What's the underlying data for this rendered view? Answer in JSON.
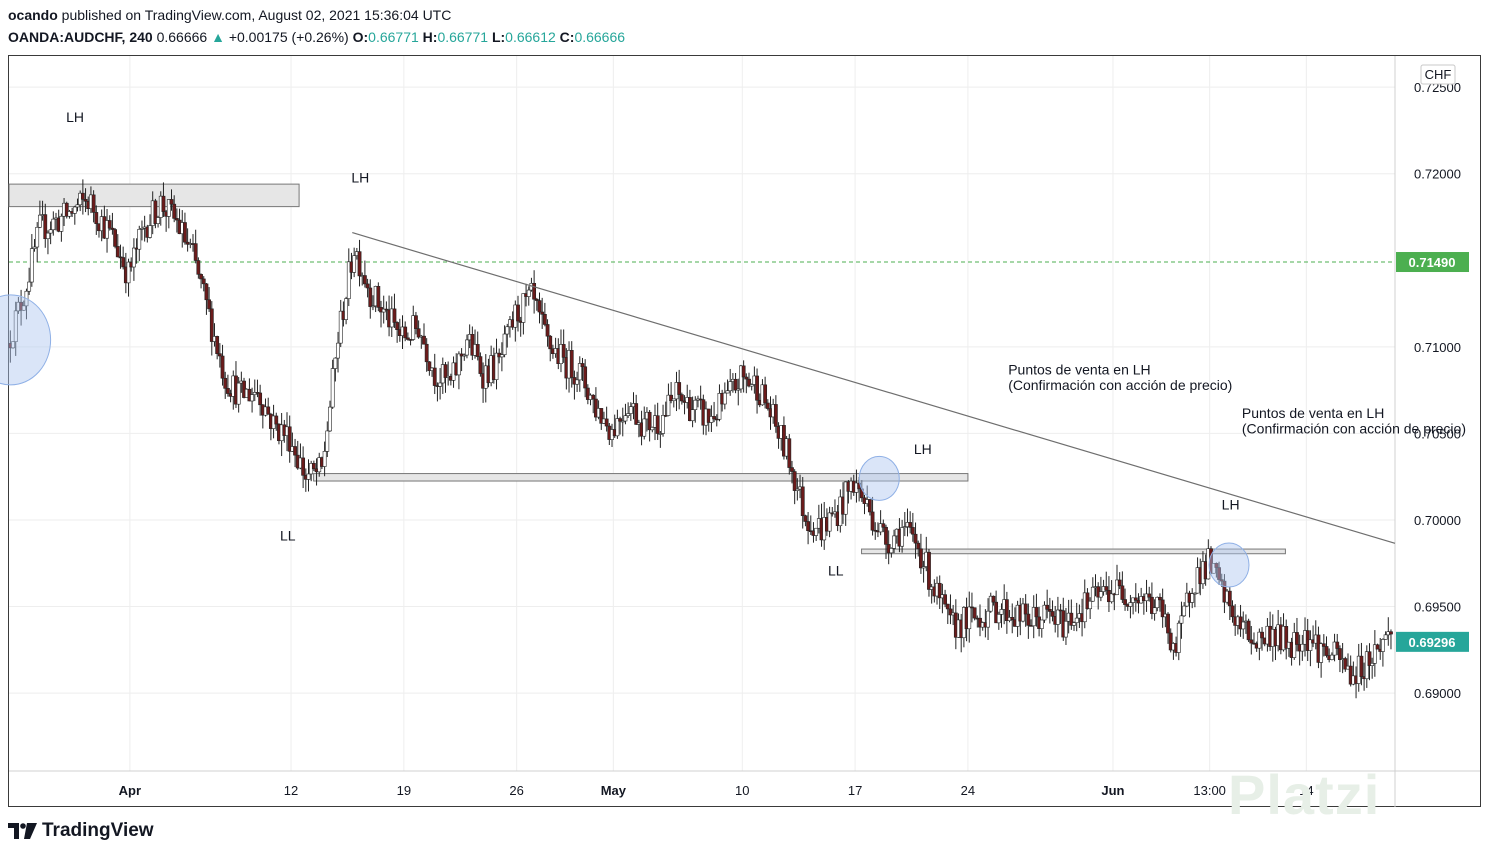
{
  "header": {
    "author": "ocando",
    "published_text": "published on TradingView.com, August 02, 2021 15:36:04 UTC",
    "symbol": "OANDA:AUDCHF, 240",
    "last": "0.66666",
    "change": "+0.00175 (+0.26%)",
    "o_label": "O:",
    "o_value": "0.66771",
    "h_label": "H:",
    "h_value": "0.66771",
    "l_label": "L:",
    "l_value": "0.66612",
    "c_label": "C:",
    "c_value": "0.66666"
  },
  "footer": {
    "brand": "TradingView",
    "watermark": "Platzi"
  },
  "colors": {
    "up": "#26a69a",
    "bull": "#ffffff",
    "bear": "#6b1b1b",
    "wick": "#222222",
    "trendline": "#6e6e6e",
    "zone_fill": "#e6e6e6",
    "circle": "#adc6f0",
    "dashed": "#4caf50",
    "last_price_bg": "#26a69a"
  },
  "chart_data": {
    "type": "candlestick",
    "currency": "CHF",
    "y_ticks": [
      "0.72500",
      "0.72000",
      "0.71000",
      "0.70500",
      "0.70000",
      "0.69500",
      "0.69000"
    ],
    "y_tick_values": [
      0.725,
      0.72,
      0.71,
      0.705,
      0.7,
      0.695,
      0.69
    ],
    "ylim": [
      0.6855,
      0.7268
    ],
    "x_ticks": [
      "Apr",
      "12",
      "19",
      "26",
      "May",
      "10",
      "17",
      "24",
      "Jun",
      "13:00",
      "14"
    ],
    "x_tick_days": [
      32,
      42,
      49,
      56,
      62,
      70,
      77,
      84,
      93,
      99,
      105
    ],
    "x_range_days": [
      24.5,
      110.5
    ],
    "grid": true,
    "horizontal_price_line": {
      "value": 0.7149,
      "label": "0.71490"
    },
    "last_price": {
      "value": 0.69296,
      "label": "0.69296"
    },
    "price_path": [
      [
        24.5,
        0.7102
      ],
      [
        25.5,
        0.713
      ],
      [
        26.5,
        0.7168
      ],
      [
        28,
        0.7175
      ],
      [
        29.5,
        0.7185
      ],
      [
        31,
        0.7163
      ],
      [
        32,
        0.7142
      ],
      [
        33,
        0.717
      ],
      [
        34,
        0.7183
      ],
      [
        35,
        0.7172
      ],
      [
        36,
        0.7152
      ],
      [
        37,
        0.7118
      ],
      [
        38,
        0.7082
      ],
      [
        39,
        0.7072
      ],
      [
        40,
        0.7075
      ],
      [
        41,
        0.7055
      ],
      [
        42,
        0.7048
      ],
      [
        43,
        0.7025
      ],
      [
        44,
        0.7028
      ],
      [
        45,
        0.7105
      ],
      [
        46,
        0.7158
      ],
      [
        47,
        0.7132
      ],
      [
        48,
        0.7118
      ],
      [
        49,
        0.7105
      ],
      [
        50,
        0.7112
      ],
      [
        51,
        0.7085
      ],
      [
        52,
        0.7078
      ],
      [
        53,
        0.7105
      ],
      [
        54,
        0.7085
      ],
      [
        55,
        0.709
      ],
      [
        56,
        0.7118
      ],
      [
        57,
        0.7128
      ],
      [
        58,
        0.7102
      ],
      [
        59,
        0.7092
      ],
      [
        60,
        0.7085
      ],
      [
        61,
        0.7065
      ],
      [
        62,
        0.7052
      ],
      [
        63,
        0.7068
      ],
      [
        64,
        0.7055
      ],
      [
        65,
        0.7058
      ],
      [
        66,
        0.7072
      ],
      [
        67,
        0.7065
      ],
      [
        68,
        0.7058
      ],
      [
        69,
        0.7068
      ],
      [
        70,
        0.7082
      ],
      [
        71,
        0.7078
      ],
      [
        72,
        0.7058
      ],
      [
        73,
        0.7035
      ],
      [
        74,
        0.7002
      ],
      [
        75,
        0.6995
      ],
      [
        76,
        0.7005
      ],
      [
        77,
        0.7022
      ],
      [
        78,
        0.7005
      ],
      [
        79,
        0.6988
      ],
      [
        80,
        0.6995
      ],
      [
        81,
        0.6985
      ],
      [
        82,
        0.696
      ],
      [
        83,
        0.6938
      ],
      [
        84,
        0.6942
      ],
      [
        85,
        0.6945
      ],
      [
        86,
        0.695
      ],
      [
        87,
        0.6945
      ],
      [
        88,
        0.6942
      ],
      [
        89,
        0.6945
      ],
      [
        90,
        0.694
      ],
      [
        91,
        0.6948
      ],
      [
        92,
        0.6955
      ],
      [
        93,
        0.696
      ],
      [
        94,
        0.6958
      ],
      [
        95,
        0.6955
      ],
      [
        96,
        0.6948
      ],
      [
        97,
        0.6925
      ],
      [
        98,
        0.6965
      ],
      [
        99,
        0.6975
      ],
      [
        100,
        0.6955
      ],
      [
        101,
        0.6938
      ],
      [
        102,
        0.693
      ],
      [
        103,
        0.6935
      ],
      [
        104,
        0.6928
      ],
      [
        105,
        0.6935
      ],
      [
        106,
        0.6925
      ],
      [
        107,
        0.692
      ],
      [
        108,
        0.691
      ],
      [
        109,
        0.692
      ],
      [
        110.3,
        0.6935
      ]
    ],
    "trendline": {
      "x": [
        45.8,
        110.5
      ],
      "y": [
        0.7166,
        0.69865
      ]
    },
    "zones": [
      {
        "x": [
          24.5,
          42.5
        ],
        "y": [
          0.7181,
          0.7194
        ]
      },
      {
        "x": [
          43.4,
          84.0
        ],
        "y": [
          0.70225,
          0.70268
        ]
      },
      {
        "x": [
          77.4,
          103.7
        ],
        "y": [
          0.69805,
          0.69832
        ]
      }
    ],
    "highlight_circles": [
      {
        "x": 24.6,
        "y": 0.7104
      },
      {
        "x": 78.5,
        "y": 0.7024
      },
      {
        "x": 100.2,
        "y": 0.6974
      }
    ],
    "annotations": [
      {
        "text": "LH",
        "x": 28.6,
        "y": 0.723
      },
      {
        "text": "LH",
        "x": 46.3,
        "y": 0.7195
      },
      {
        "text": "LL",
        "x": 41.8,
        "y": 0.6988
      },
      {
        "text": "LH",
        "x": 81.2,
        "y": 0.7038
      },
      {
        "text": "LL",
        "x": 75.8,
        "y": 0.6968
      },
      {
        "text": "LH",
        "x": 100.3,
        "y": 0.7006
      },
      {
        "text": "Puntos de venta en LH",
        "x": 86.5,
        "y": 0.7084
      },
      {
        "text": "(Confirmación con acción de precio)",
        "x": 86.5,
        "y": 0.7075
      },
      {
        "text": "Puntos de venta en LH",
        "x": 101.0,
        "y": 0.7059
      },
      {
        "text": "(Confirmación con acción de precio)",
        "x": 101.0,
        "y": 0.705
      }
    ]
  }
}
